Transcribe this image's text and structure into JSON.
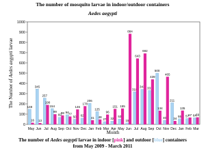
{
  "chart_data": {
    "type": "bar",
    "title": "The number of mosquito larvae in indoor/outdoor containers",
    "subtitle": "Aedes aegypti",
    "y_label": [
      "The Number of ",
      "Aedes aegypti",
      " larvae"
    ],
    "x_label": "Month",
    "caption": {
      "line1": [
        "The number of ",
        "Aedes aegypti",
        " larvae in indoor [",
        "pink",
        "] and outdoor [",
        "blue",
        "] containers"
      ],
      "line2": "from May 2009 - March 2011"
    },
    "categories": [
      "May",
      "Jun",
      "Jul",
      "Aug",
      "Sep",
      "Oct",
      "Nov",
      "Dec",
      "Jan",
      "Feb",
      "Mar",
      "Apr",
      "May",
      "Jun",
      "Jul",
      "Aug",
      "Sep",
      "Oct",
      "Nov",
      "Dec",
      "Jan",
      "Feb",
      "Mar"
    ],
    "series": [
      {
        "name": "outdoor",
        "color": "#a9d3f2",
        "values": [
          148,
          345,
          257,
          154,
          69,
          94,
          50,
          62,
          206,
          125,
          27,
          32,
          53,
          15,
          318,
          343,
          331,
          500,
          40,
          211,
          55,
          57,
          64
        ]
      },
      {
        "name": "indoor",
        "color": "#e0249c",
        "values": [
          16,
          13,
          190,
          99,
          88,
          77,
          146,
          178,
          41,
          48,
          96,
          151,
          155,
          884,
          643,
          692,
          439,
          134,
          465,
          34,
          135,
          67,
          69
        ]
      }
    ],
    "ylim": [
      0,
      1000
    ],
    "yticks": [
      0,
      100,
      200,
      300,
      400,
      500,
      600,
      700,
      800,
      900,
      1000
    ]
  }
}
